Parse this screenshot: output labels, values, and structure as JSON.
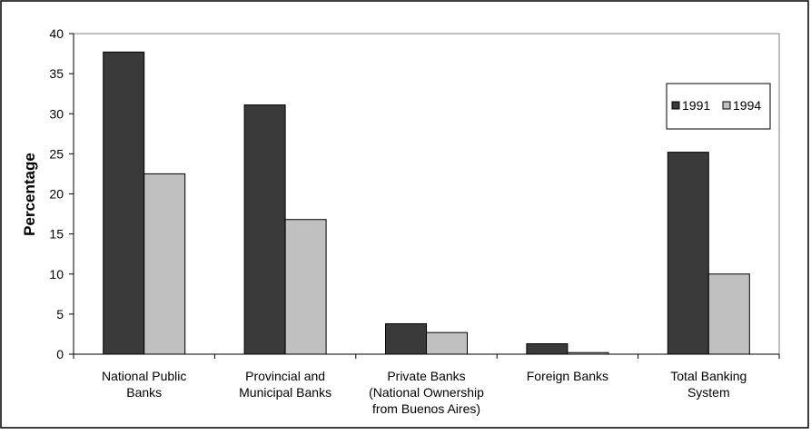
{
  "chart_data": {
    "type": "bar",
    "title": "",
    "xlabel": "",
    "ylabel": "Percentage",
    "ylim": [
      0,
      40
    ],
    "yticks": [
      0,
      5,
      10,
      15,
      20,
      25,
      30,
      35,
      40
    ],
    "grid": false,
    "legend_position": "right",
    "categories": [
      [
        "National Public",
        "Banks"
      ],
      [
        "Provincial and",
        "Municipal Banks"
      ],
      [
        "Private Banks",
        "(National Ownership",
        "from Buenos Aires)"
      ],
      [
        "Foreign Banks"
      ],
      [
        "Total Banking",
        "System"
      ]
    ],
    "series": [
      {
        "name": "1991",
        "color": "#3a3a3a",
        "values": [
          37.7,
          31.1,
          3.8,
          1.3,
          25.2
        ]
      },
      {
        "name": "1994",
        "color": "#c0c0c0",
        "values": [
          22.5,
          16.8,
          2.7,
          0.2,
          10.0
        ]
      }
    ]
  }
}
